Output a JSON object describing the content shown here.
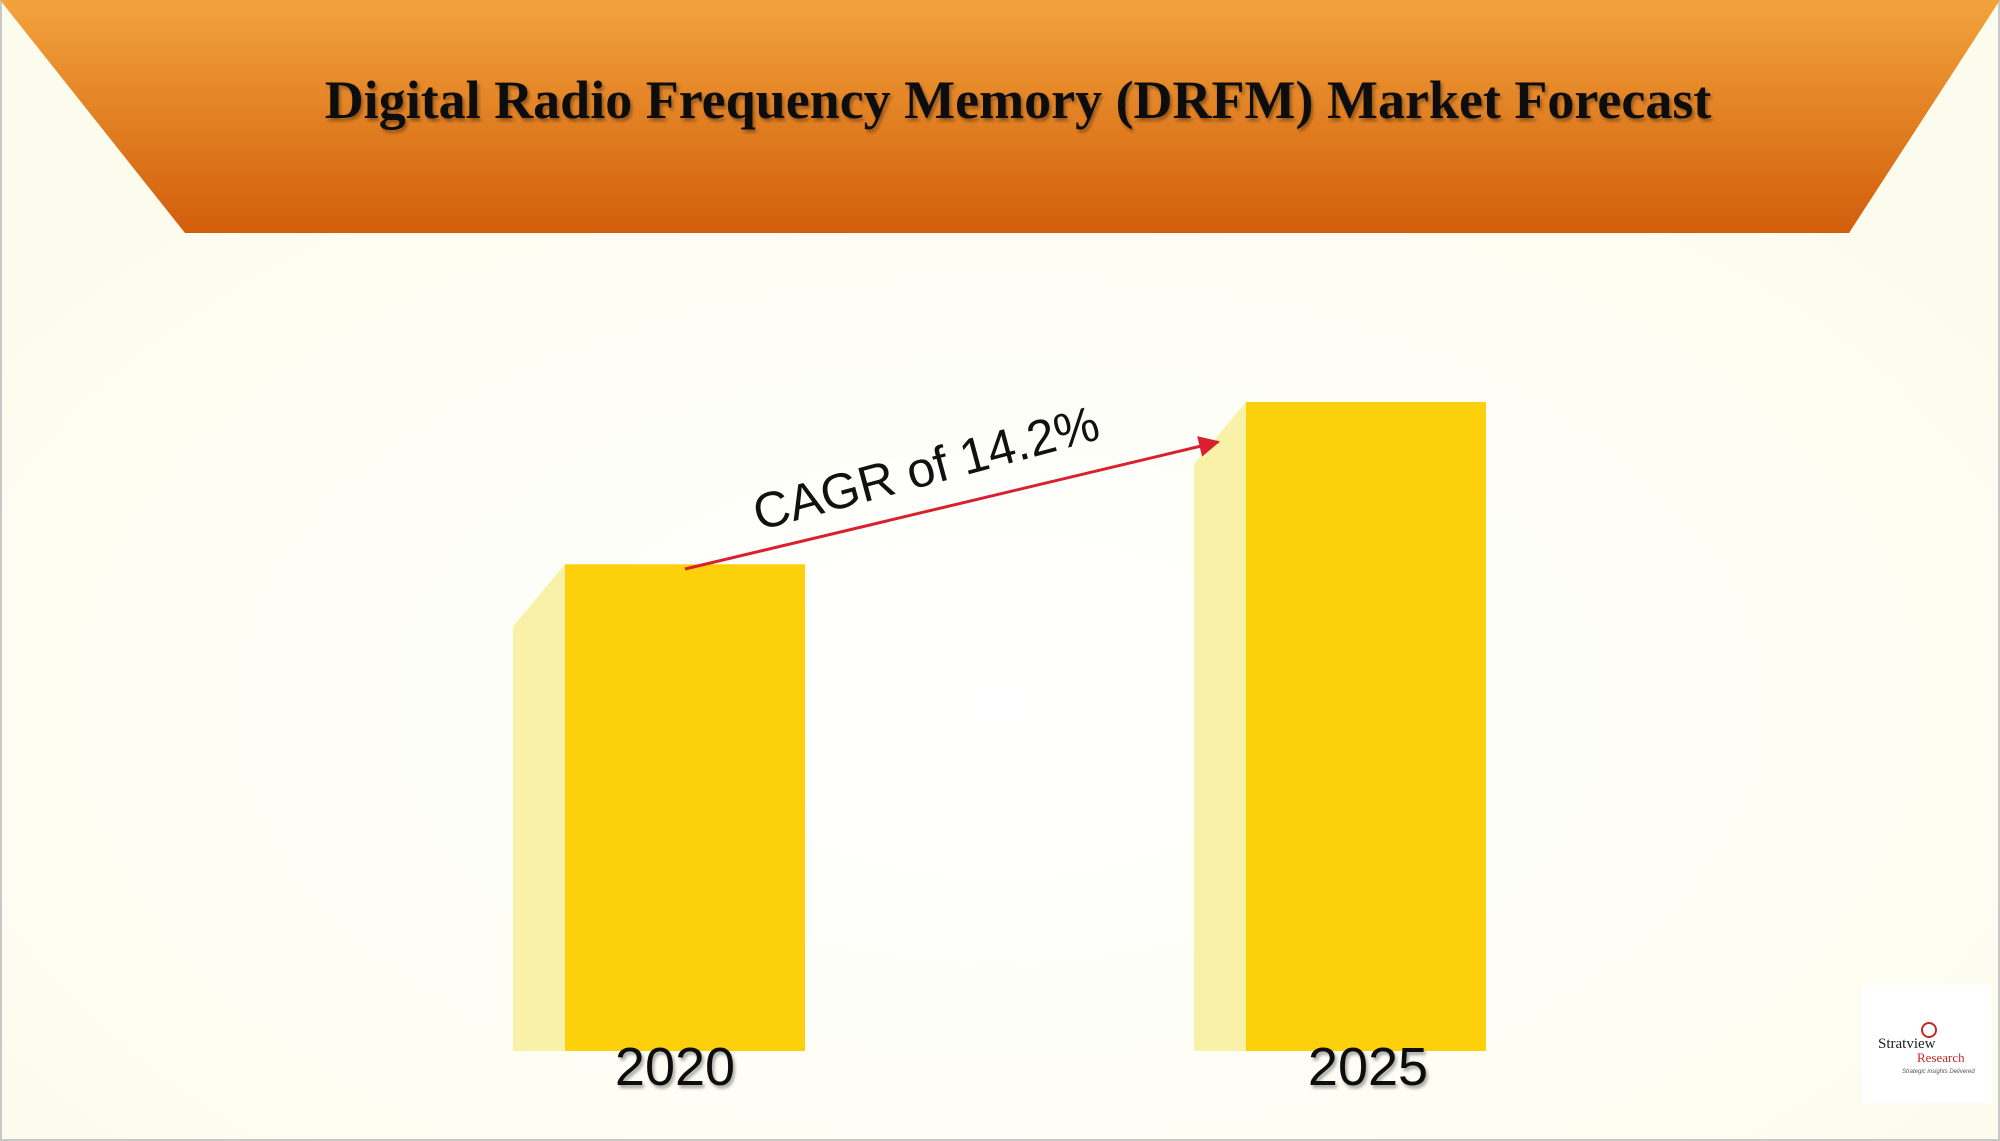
{
  "chart_data": {
    "type": "bar",
    "title": "Digital Radio Frequency Memory (DRFM) Market Forecast",
    "categories": [
      "2020",
      "2025"
    ],
    "values": [
      75,
      100
    ],
    "color": "#fdd00c",
    "shadow_color": "#f9f1a8",
    "ylim": [
      0,
      100
    ],
    "annotation": "CAGR of 14.2%"
  },
  "logo": {
    "name": "Stratview",
    "sub": "Research",
    "tagline": "Strategic insights Delivered"
  }
}
